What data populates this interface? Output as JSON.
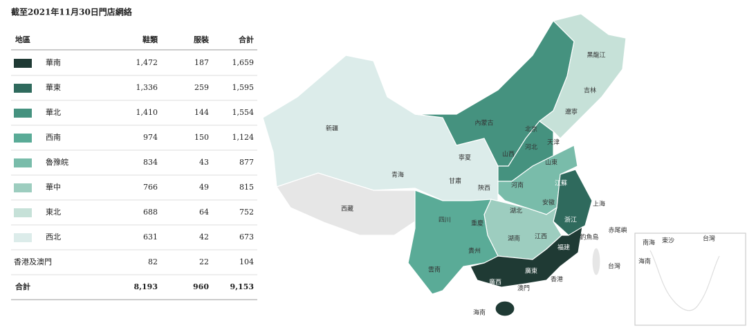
{
  "title": "截至2021年11月30日門店網絡",
  "table": {
    "header": [
      "地區",
      "鞋類",
      "服裝",
      "合計"
    ],
    "rows": [
      {
        "region": "華南",
        "color": "#1f3a34",
        "cells": [
          "1,472",
          "187",
          "1,659"
        ]
      },
      {
        "region": "華東",
        "color": "#2f6a5d",
        "cells": [
          "1,336",
          "259",
          "1,595"
        ]
      },
      {
        "region": "華北",
        "color": "#45927f",
        "cells": [
          "1,410",
          "144",
          "1,554"
        ]
      },
      {
        "region": "西南",
        "color": "#5aab97",
        "cells": [
          "974",
          "150",
          "1,124"
        ]
      },
      {
        "region": "魯豫皖",
        "color": "#79bcaa",
        "cells": [
          "834",
          "43",
          "877"
        ]
      },
      {
        "region": "華中",
        "color": "#9dcdbf",
        "cells": [
          "766",
          "49",
          "815"
        ]
      },
      {
        "region": "東北",
        "color": "#c6e1d8",
        "cells": [
          "688",
          "64",
          "752"
        ]
      },
      {
        "region": "西北",
        "color": "#dcecea",
        "cells": [
          "631",
          "42",
          "673"
        ]
      },
      {
        "region": "香港及澳門",
        "cells": [
          "82",
          "22",
          "104"
        ]
      }
    ],
    "total": [
      "合計",
      "8,193",
      "960",
      "9,153"
    ]
  },
  "map": {
    "labels": [
      "黑龍江",
      "吉林",
      "遼寧",
      "內蒙古",
      "北京",
      "天津",
      "河北",
      "山西",
      "山東",
      "寧夏",
      "青海",
      "新疆",
      "西藏",
      "甘肅",
      "陝西",
      "河南",
      "江蘇",
      "安徽",
      "上海",
      "湖北",
      "浙江",
      "四川",
      "重慶",
      "湖南",
      "江西",
      "福建",
      "貴州",
      "雲南",
      "廣西",
      "廣東",
      "香港",
      "澳門",
      "海南",
      "台灣",
      "釣魚島",
      "赤尾嶼"
    ],
    "insert_labels": [
      "南海",
      "東沙",
      "台灣",
      "海南"
    ]
  }
}
